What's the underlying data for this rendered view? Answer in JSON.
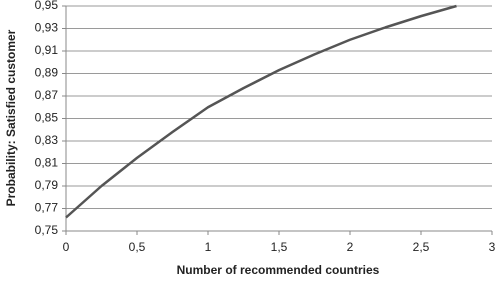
{
  "chart_data": {
    "type": "line",
    "x_label": "Number of recommended countries",
    "y_label": "Probability: Satisfied  customer",
    "x": [
      0,
      0.25,
      0.5,
      0.75,
      1,
      1.25,
      1.5,
      1.75,
      2,
      2.25,
      2.5,
      2.75
    ],
    "series": [
      {
        "color": "#555555",
        "values": [
          0.762,
          0.79,
          0.815,
          0.838,
          0.86,
          0.877,
          0.893,
          0.907,
          0.92,
          0.931,
          0.941,
          0.95
        ]
      }
    ],
    "xlim": [
      0,
      3
    ],
    "xticks": [
      0,
      {
        "value": 0.5,
        "label": "0,5"
      },
      1,
      {
        "value": 1.5,
        "label": "1,5"
      },
      2,
      {
        "value": 2.5,
        "label": "2,5"
      },
      3
    ],
    "ylim": [
      0.75,
      0.95
    ],
    "yticks": [
      {
        "value": 0.75,
        "label": "0,75"
      },
      {
        "value": 0.77,
        "label": "0,77"
      },
      {
        "value": 0.79,
        "label": "0,79"
      },
      {
        "value": 0.81,
        "label": "0,81"
      },
      {
        "value": 0.83,
        "label": "0,83"
      },
      {
        "value": 0.85,
        "label": "0,85"
      },
      {
        "value": 0.87,
        "label": "0,87"
      },
      {
        "value": 0.89,
        "label": "0,89"
      },
      {
        "value": 0.91,
        "label": "0,91"
      },
      {
        "value": 0.93,
        "label": "0,93"
      },
      {
        "value": 0.95,
        "label": "0,95"
      }
    ],
    "grid": true
  }
}
